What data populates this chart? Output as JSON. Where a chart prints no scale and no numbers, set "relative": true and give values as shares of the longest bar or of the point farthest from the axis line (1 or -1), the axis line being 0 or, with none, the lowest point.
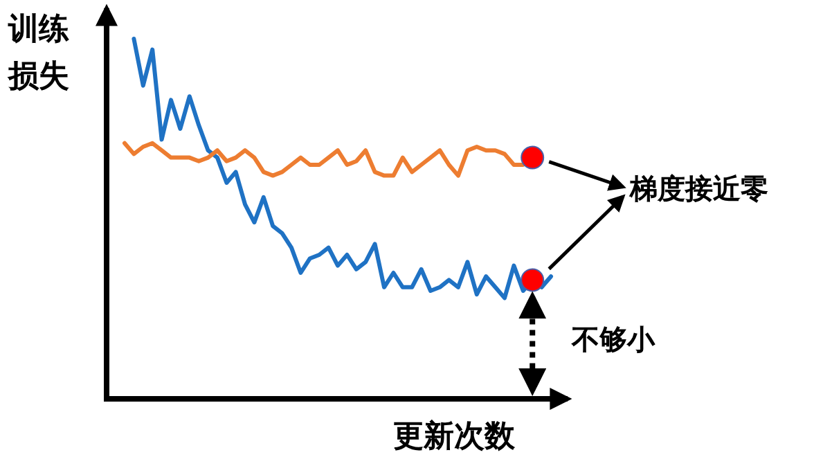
{
  "chart_data": {
    "type": "line",
    "relative": true,
    "xlabel": "更新次数",
    "ylabel": "训练损失",
    "categories": [
      null,
      null,
      null,
      null,
      null,
      null,
      null,
      null,
      null,
      null,
      null,
      null,
      null,
      null,
      null,
      null,
      null,
      null,
      null,
      null,
      null,
      null,
      null,
      null,
      null,
      null,
      null,
      null,
      null,
      null,
      null,
      null,
      null,
      null,
      null,
      null,
      null,
      null,
      null,
      null,
      null,
      null,
      null,
      null,
      null,
      null,
      null
    ],
    "series": [
      {
        "color": "#1f72c4",
        "values": [
          null,
          1.0,
          0.87,
          0.97,
          0.72,
          0.83,
          0.75,
          0.84,
          0.76,
          0.69,
          0.67,
          0.6,
          0.63,
          0.54,
          0.49,
          0.56,
          0.48,
          0.46,
          0.42,
          0.35,
          0.39,
          0.4,
          0.42,
          0.37,
          0.4,
          0.36,
          0.38,
          0.43,
          0.31,
          0.35,
          0.31,
          0.31,
          0.36,
          0.3,
          0.31,
          0.33,
          0.31,
          0.38,
          0.29,
          0.34,
          0.31,
          0.28,
          0.37,
          0.3,
          0.33,
          0.31,
          0.34
        ]
      },
      {
        "color": "#ed7d31",
        "values": [
          0.71,
          0.68,
          0.7,
          0.71,
          0.69,
          0.67,
          0.67,
          0.67,
          0.66,
          0.67,
          0.69,
          0.66,
          0.67,
          0.69,
          0.67,
          0.63,
          0.62,
          0.63,
          0.65,
          0.67,
          0.65,
          0.65,
          0.67,
          0.69,
          0.65,
          0.66,
          0.69,
          0.63,
          0.62,
          0.62,
          0.67,
          0.63,
          0.65,
          0.67,
          0.69,
          0.65,
          0.62,
          0.69,
          0.7,
          0.69,
          0.69,
          0.68,
          0.65,
          0.65,
          0.67,
          null,
          null
        ]
      }
    ],
    "annotations": [
      "梯度接近零",
      "不够小"
    ]
  }
}
